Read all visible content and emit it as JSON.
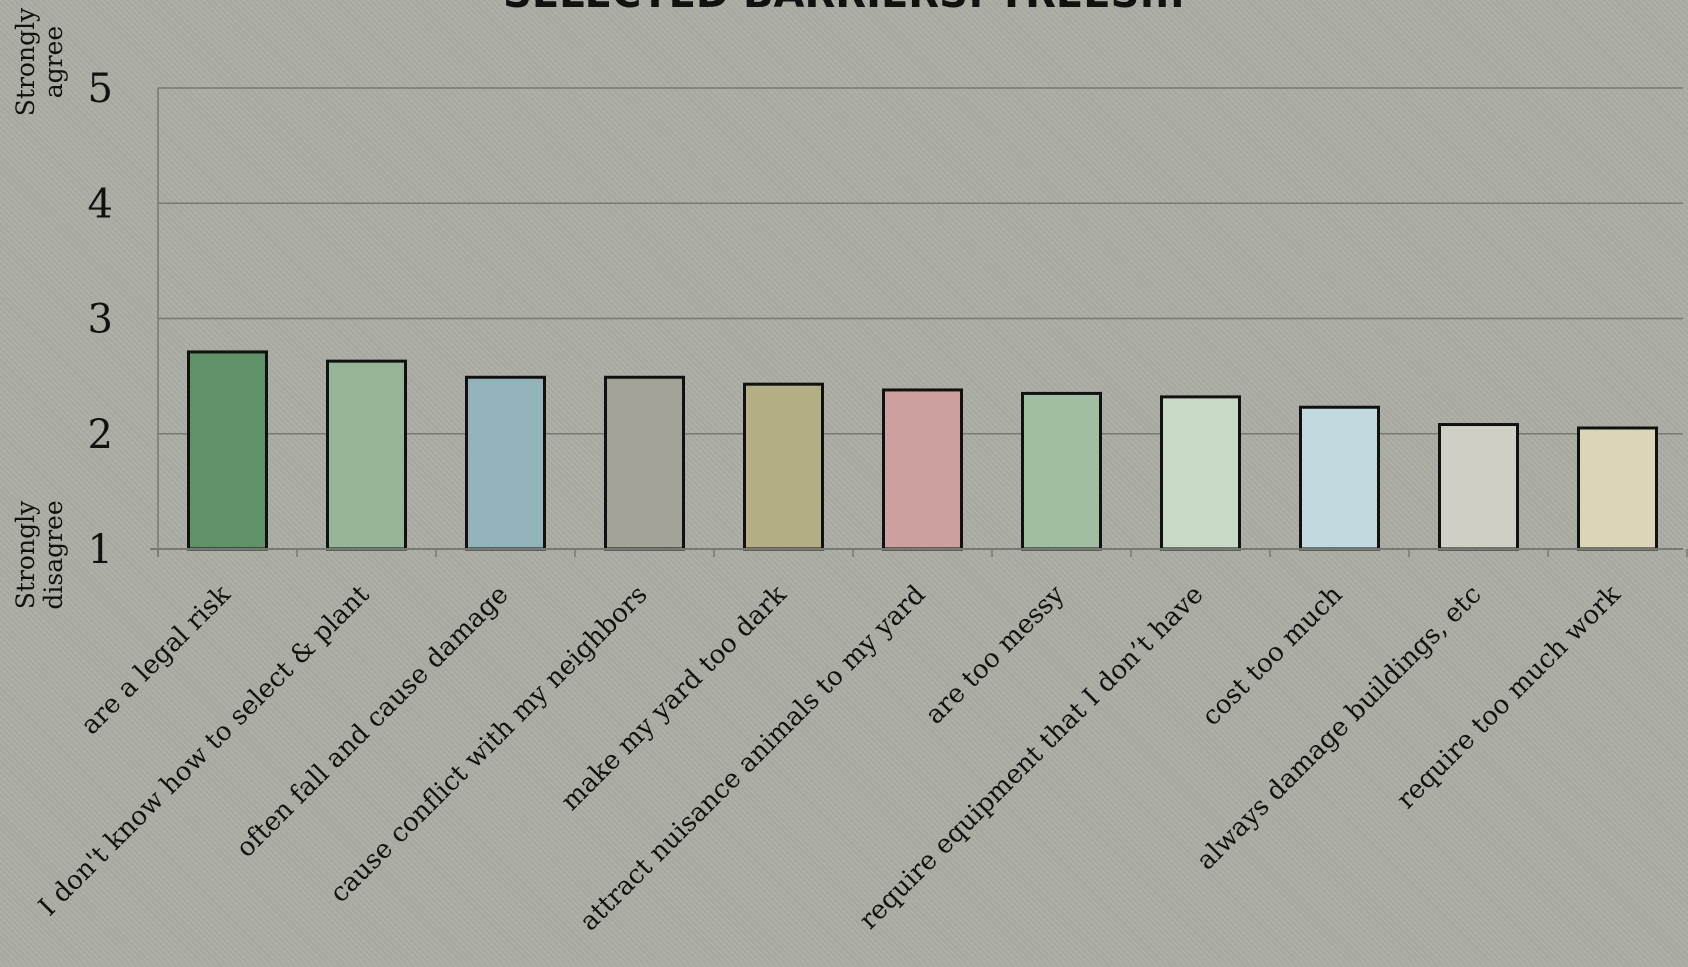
{
  "chart_data": {
    "type": "bar",
    "title": "SELECTED BARRIERS: TREES...",
    "ylabel_top": [
      "Strongly",
      "agree"
    ],
    "ylabel_bottom": [
      "Strongly",
      "disagree"
    ],
    "ylim": [
      1,
      5
    ],
    "yticks": [
      1,
      2,
      3,
      4,
      5
    ],
    "grid": true,
    "categories": [
      "are a legal risk",
      "I don't know how to select & plant",
      "often fall and cause damage",
      "cause conflict with my neighbors",
      "make my yard too dark",
      "attract nuisance animals to my yard",
      "are too messy",
      "require equipment that I don’t have",
      "cost too much",
      "always damage buildings, etc",
      "require too much work"
    ],
    "values": [
      2.71,
      2.63,
      2.49,
      2.49,
      2.43,
      2.38,
      2.35,
      2.32,
      2.23,
      2.08,
      2.05
    ],
    "colors": [
      "#619166",
      "#97b597",
      "#93b3ba",
      "#a3a497",
      "#b3ae84",
      "#cda0a0",
      "#a1bea3",
      "#c8dac6",
      "#c2d9e0",
      "#d1d0c7",
      "#dbd6b7"
    ]
  }
}
